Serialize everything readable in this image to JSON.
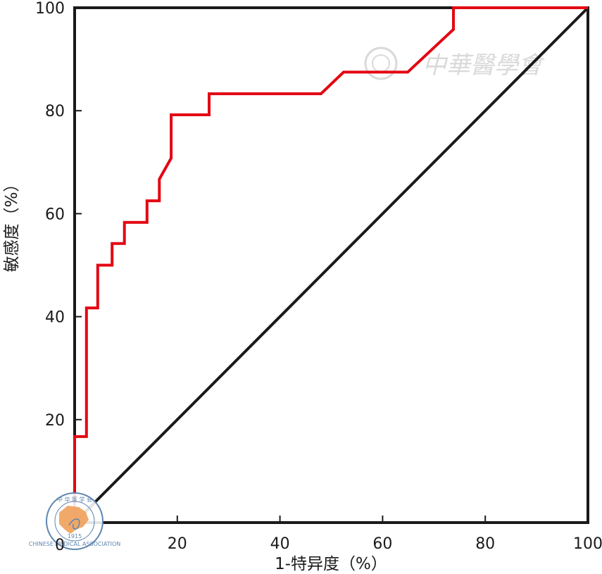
{
  "chart_data": {
    "type": "line",
    "xlabel": "1-特异度（%）",
    "ylabel": "敏感度（%）",
    "xlim": [
      0,
      100
    ],
    "ylim": [
      0,
      100
    ],
    "x_ticks": [
      "20",
      "40",
      "60",
      "80",
      "100"
    ],
    "y_ticks": [
      "20",
      "40",
      "60",
      "80",
      "100"
    ],
    "origin_label": "0",
    "grid": false,
    "legend": "none",
    "series": [
      {
        "color": "#e30613",
        "style": "step",
        "points": [
          [
            0,
            0
          ],
          [
            0,
            16.7
          ],
          [
            2.3,
            16.7
          ],
          [
            2.3,
            41.7
          ],
          [
            4.5,
            41.7
          ],
          [
            4.5,
            50
          ],
          [
            7.3,
            50
          ],
          [
            7.3,
            54.2
          ],
          [
            9.7,
            54.2
          ],
          [
            9.7,
            58.3
          ],
          [
            14.1,
            58.3
          ],
          [
            14.1,
            62.5
          ],
          [
            16.5,
            62.5
          ],
          [
            16.5,
            66.7
          ],
          [
            18.8,
            70.8
          ],
          [
            18.8,
            79.2
          ],
          [
            26.2,
            79.2
          ],
          [
            26.2,
            83.3
          ],
          [
            48,
            83.3
          ],
          [
            52.4,
            87.5
          ],
          [
            64.9,
            87.5
          ],
          [
            73.8,
            95.8
          ],
          [
            73.8,
            100
          ],
          [
            100,
            100
          ]
        ]
      },
      {
        "color": "#1a1a1a",
        "style": "reference",
        "points": [
          [
            0,
            0
          ],
          [
            100,
            100
          ]
        ]
      }
    ]
  },
  "watermark": {
    "text": "中華醫學會",
    "color": "#d9d9d9"
  },
  "logo": {
    "top_text": "中 华 医 学 会",
    "ring_text": "CHINESE MEDICAL ASSOCIATION",
    "year": "1915",
    "map_color": "#f0a05a",
    "ring_color": "#5f86b0"
  }
}
